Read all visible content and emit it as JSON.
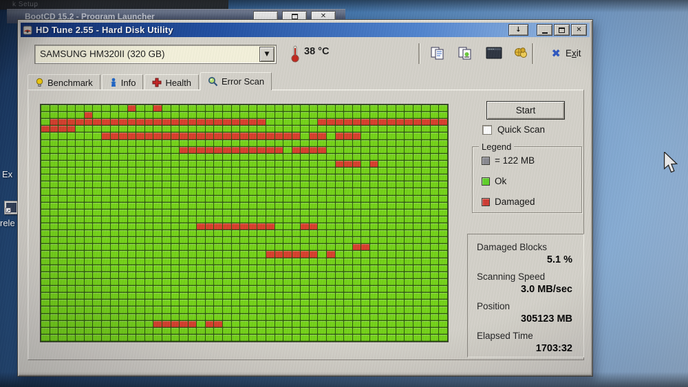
{
  "background": {
    "top_sliver_text": "k Setup",
    "bootcd_title": "BootCD 15.2 - Program Launcher",
    "desktop_labels": {
      "icon1": "Ex",
      "icon2": "rele"
    }
  },
  "window": {
    "title": "HD Tune 2.55 - Hard Disk Utility"
  },
  "toolbar": {
    "drive_select_value": "SAMSUNG HM320II (320 GB)",
    "temperature": "38 °C",
    "exit": {
      "pre": "E",
      "accel": "x",
      "post": "it"
    }
  },
  "tabs": {
    "active": "Error Scan",
    "items": [
      {
        "label": "Benchmark"
      },
      {
        "label": "Info"
      },
      {
        "label": "Health"
      },
      {
        "label": "Error Scan"
      }
    ]
  },
  "error_scan": {
    "start_label": "Start",
    "quick_scan_label": "Quick Scan",
    "quick_scan_checked": false,
    "legend": {
      "title": "Legend",
      "block_label": "= 122 MB",
      "ok_label": "Ok",
      "damaged_label": "Damaged",
      "block_color": "#8a8a92",
      "ok_color": "#5ad41e",
      "damaged_color": "#d83830"
    },
    "stats": {
      "items": [
        {
          "label": "Damaged Blocks",
          "value": "5.1 %"
        },
        {
          "label": "Scanning Speed",
          "value": "3.0 MB/sec"
        },
        {
          "label": "Position",
          "value": "305123 MB"
        },
        {
          "label": "Elapsed Time",
          "value": "1703:32"
        }
      ]
    }
  },
  "grid": {
    "cols": 47,
    "rows": 34,
    "colors": {
      "ok": "#70d60e",
      "damaged": "#e03c28",
      "line": "#2a5a08"
    },
    "red_runs": [
      [
        0,
        10,
        10
      ],
      [
        0,
        13,
        13
      ],
      [
        1,
        5,
        5
      ],
      [
        2,
        1,
        25
      ],
      [
        2,
        32,
        46
      ],
      [
        3,
        0,
        3
      ],
      [
        4,
        7,
        29
      ],
      [
        4,
        31,
        32
      ],
      [
        4,
        34,
        36
      ],
      [
        6,
        16,
        27
      ],
      [
        6,
        29,
        32
      ],
      [
        8,
        34,
        36
      ],
      [
        8,
        38,
        38
      ],
      [
        17,
        18,
        26
      ],
      [
        17,
        30,
        31
      ],
      [
        20,
        36,
        37
      ],
      [
        21,
        26,
        31
      ],
      [
        21,
        33,
        33
      ],
      [
        31,
        13,
        17
      ],
      [
        31,
        19,
        20
      ]
    ]
  },
  "colors": {
    "titlebar_left": "#0b2e78",
    "titlebar_right": "#9dc0ea",
    "window_bg": "#d6d3cb",
    "desktop_blue": "#3f74ad"
  }
}
